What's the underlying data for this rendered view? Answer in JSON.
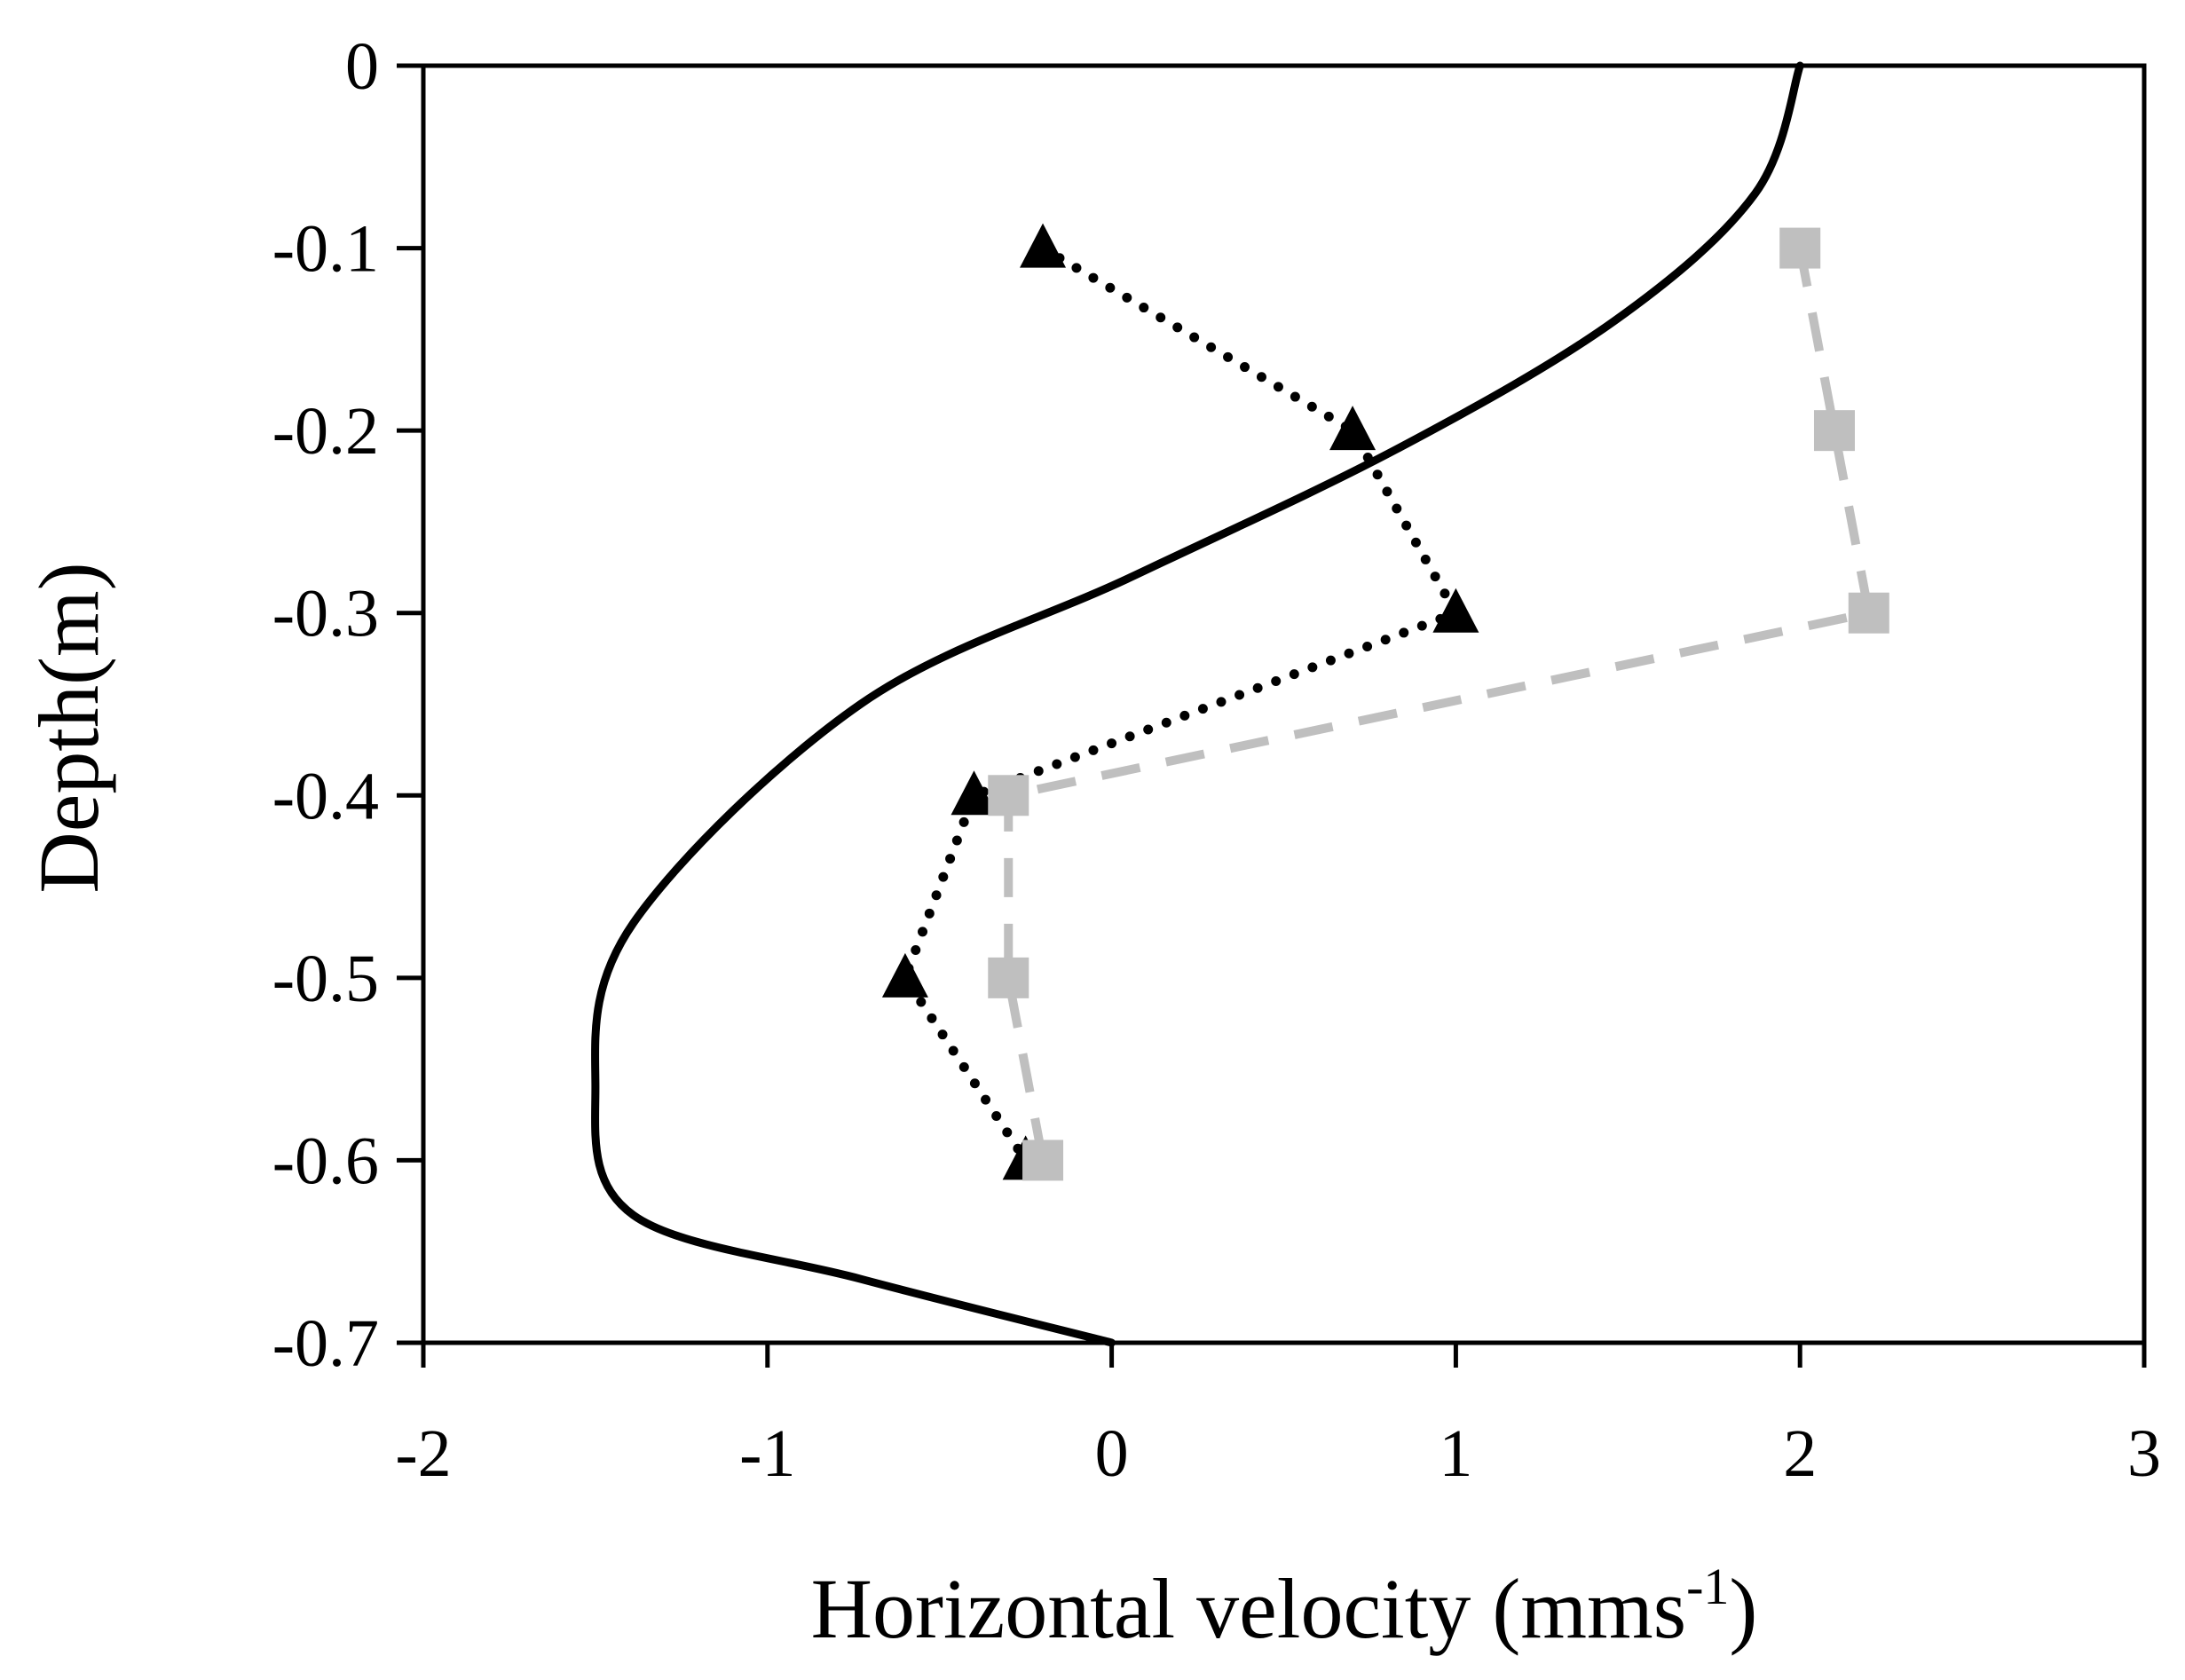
{
  "chart_data": {
    "type": "line",
    "title": "",
    "xlabel": "Horizontal velocity (mms",
    "xlabel_superscript": "-1",
    "xlabel_close": ")",
    "ylabel": "Depth(m)",
    "xlim": [
      -2,
      3
    ],
    "ylim": [
      -0.7,
      0
    ],
    "xticks": [
      -2,
      -1,
      0,
      1,
      2,
      3
    ],
    "xtick_labels": [
      "-2",
      "-1",
      "0",
      "1",
      "2",
      "3"
    ],
    "yticks": [
      0,
      -0.1,
      -0.2,
      -0.3,
      -0.4,
      -0.5,
      -0.6,
      -0.7
    ],
    "ytick_labels": [
      "0",
      "-0.1",
      "-0.2",
      "-0.3",
      "-0.4",
      "-0.5",
      "-0.6",
      "-0.7"
    ],
    "grid": false,
    "legend": "none",
    "series": [
      {
        "name": "solid-curve",
        "style": "solid",
        "color": "#000000",
        "marker": "none",
        "x": [
          2.0,
          1.87,
          1.46,
          0.83,
          0.06,
          -0.73,
          -1.39,
          -1.5,
          -1.39,
          -0.73,
          0.0
        ],
        "y": [
          0.0,
          -0.07,
          -0.14,
          -0.21,
          -0.28,
          -0.35,
          -0.47,
          -0.56,
          -0.63,
          -0.665,
          -0.7
        ]
      },
      {
        "name": "triangle-series",
        "style": "dotted",
        "color": "#000000",
        "marker": "triangle",
        "x": [
          -0.2,
          0.7,
          1.0,
          -0.4,
          -0.6,
          -0.25
        ],
        "y": [
          -0.1,
          -0.2,
          -0.3,
          -0.4,
          -0.5,
          -0.6
        ]
      },
      {
        "name": "square-series",
        "style": "dashed",
        "color": "#bfbfbf",
        "marker": "square",
        "x": [
          2.0,
          2.1,
          2.2,
          -0.3,
          -0.3,
          -0.2
        ],
        "y": [
          -0.1,
          -0.2,
          -0.3,
          -0.4,
          -0.5,
          -0.6
        ]
      }
    ]
  }
}
